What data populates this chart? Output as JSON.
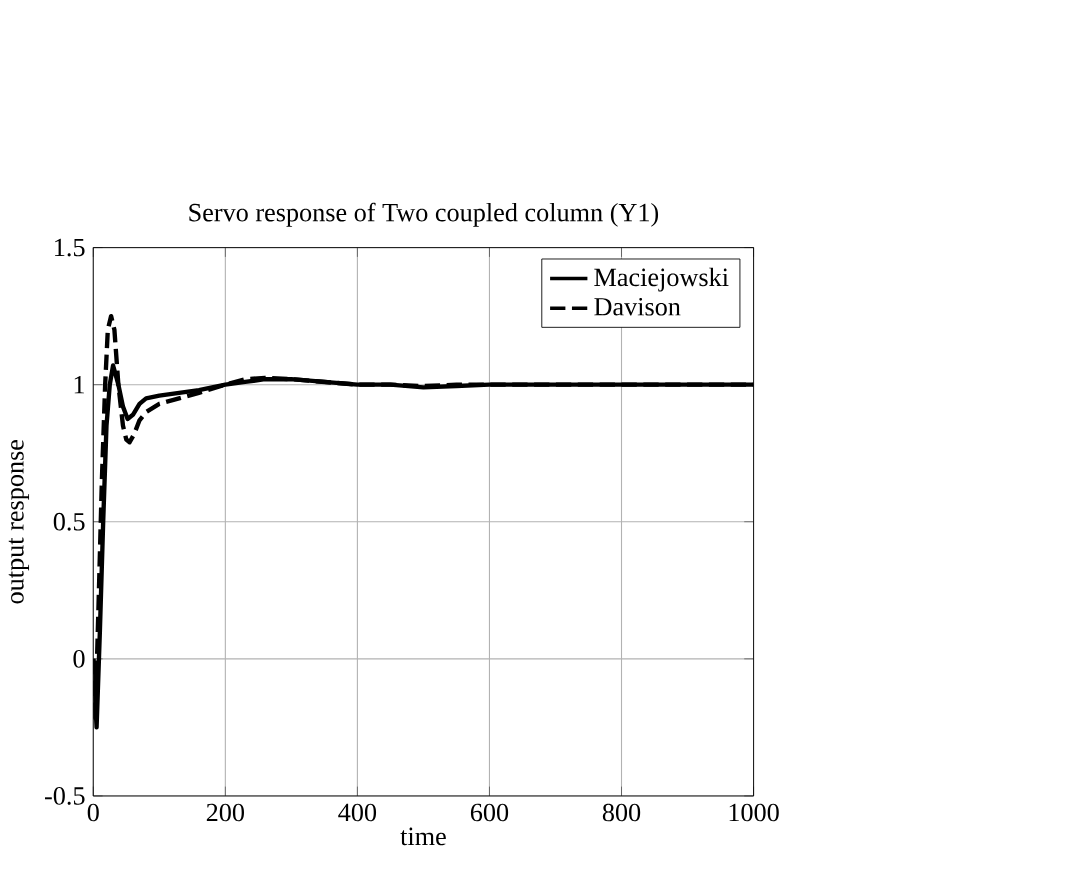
{
  "chart_data": {
    "type": "line",
    "title": "Servo response of Two coupled column (Y1)",
    "xlabel": "time",
    "ylabel": "output response",
    "xlim": [
      0,
      1000
    ],
    "ylim": [
      -0.5,
      1.5
    ],
    "xticks": [
      0,
      200,
      400,
      600,
      800,
      1000
    ],
    "yticks": [
      -0.5,
      0,
      0.5,
      1,
      1.5
    ],
    "grid": true,
    "legend": "top right",
    "series": [
      {
        "name": "Maciejowski",
        "color": "#000000",
        "line_style": "solid",
        "x": [
          0,
          5,
          10,
          15,
          20,
          25,
          30,
          38,
          45,
          52,
          60,
          70,
          80,
          100,
          130,
          160,
          200,
          230,
          260,
          300,
          350,
          400,
          450,
          500,
          550,
          600,
          700,
          800,
          900,
          1000
        ],
        "values": [
          0,
          -0.25,
          0.1,
          0.5,
          0.85,
          1.0,
          1.07,
          1.0,
          0.92,
          0.875,
          0.89,
          0.93,
          0.95,
          0.96,
          0.97,
          0.98,
          1.0,
          1.01,
          1.02,
          1.02,
          1.01,
          1.0,
          1.0,
          0.99,
          0.995,
          1.0,
          1.0,
          1.0,
          1.0,
          1.0
        ]
      },
      {
        "name": "Davison",
        "color": "#000000",
        "line_style": "dashed",
        "x": [
          0,
          3,
          8,
          13,
          18,
          22,
          27,
          32,
          38,
          45,
          50,
          55,
          62,
          70,
          80,
          100,
          130,
          160,
          200,
          230,
          260,
          300,
          350,
          400,
          450,
          500,
          550,
          600,
          700,
          800,
          900,
          1000
        ],
        "values": [
          0,
          -0.23,
          0.2,
          0.65,
          1.0,
          1.2,
          1.25,
          1.2,
          1.0,
          0.85,
          0.8,
          0.79,
          0.82,
          0.87,
          0.9,
          0.93,
          0.95,
          0.97,
          1.0,
          1.02,
          1.025,
          1.02,
          1.01,
          1.0,
          1.0,
          0.995,
          1.0,
          1.0,
          1.0,
          1.0,
          1.0,
          1.0
        ]
      }
    ]
  }
}
